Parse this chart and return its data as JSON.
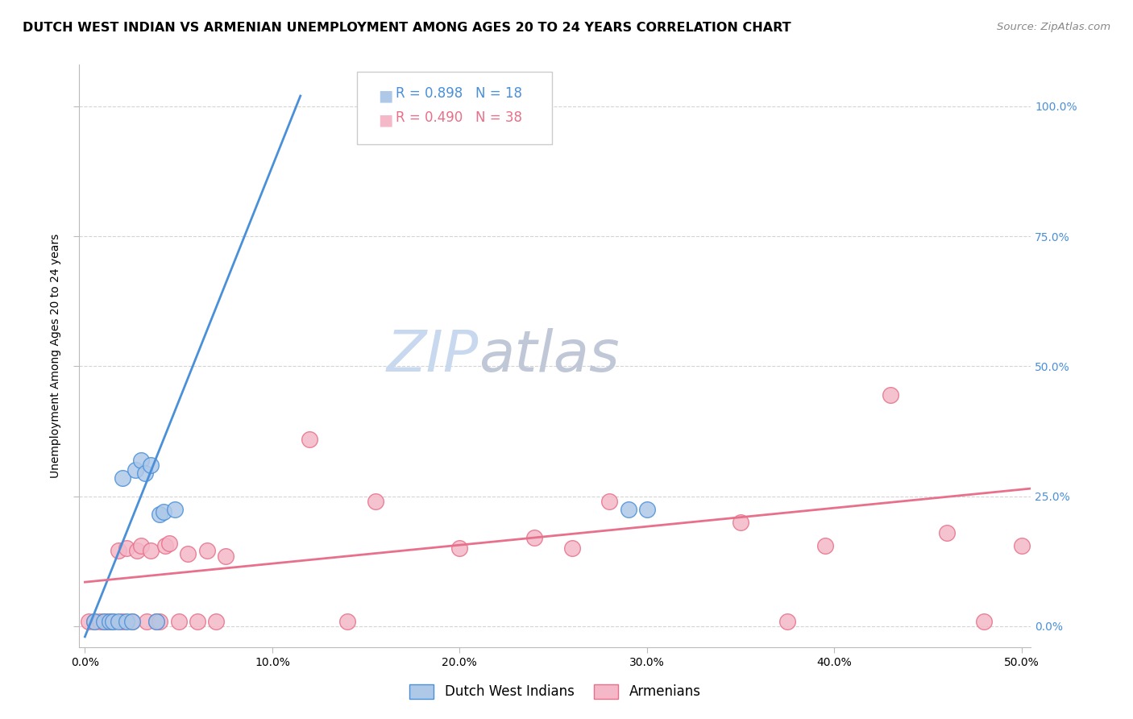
{
  "title": "DUTCH WEST INDIAN VS ARMENIAN UNEMPLOYMENT AMONG AGES 20 TO 24 YEARS CORRELATION CHART",
  "source": "Source: ZipAtlas.com",
  "ylabel": "Unemployment Among Ages 20 to 24 years",
  "xlabel_ticks": [
    "0.0%",
    "10.0%",
    "20.0%",
    "30.0%",
    "40.0%",
    "50.0%"
  ],
  "xlabel_vals": [
    0.0,
    0.1,
    0.2,
    0.3,
    0.4,
    0.5
  ],
  "ylabel_ticks": [
    "0.0%",
    "25.0%",
    "50.0%",
    "75.0%",
    "100.0%"
  ],
  "ylabel_vals": [
    0.0,
    0.25,
    0.5,
    0.75,
    1.0
  ],
  "xlim": [
    -0.003,
    0.505
  ],
  "ylim": [
    -0.04,
    1.08
  ],
  "blue_R": 0.898,
  "blue_N": 18,
  "pink_R": 0.49,
  "pink_N": 38,
  "blue_color": "#aec8e8",
  "pink_color": "#f4b8c8",
  "blue_line_color": "#4a90d9",
  "pink_line_color": "#e8708a",
  "watermark_zip": "ZIP",
  "watermark_atlas": "atlas",
  "legend_label_blue": "Dutch West Indians",
  "legend_label_pink": "Armenians",
  "blue_points_x": [
    0.005,
    0.01,
    0.013,
    0.015,
    0.018,
    0.02,
    0.022,
    0.025,
    0.027,
    0.03,
    0.032,
    0.035,
    0.038,
    0.04,
    0.042,
    0.048,
    0.29,
    0.3
  ],
  "blue_points_y": [
    0.01,
    0.01,
    0.01,
    0.01,
    0.01,
    0.285,
    0.01,
    0.01,
    0.3,
    0.32,
    0.295,
    0.31,
    0.01,
    0.215,
    0.22,
    0.225,
    0.225,
    0.225
  ],
  "pink_points_x": [
    0.002,
    0.005,
    0.008,
    0.01,
    0.012,
    0.015,
    0.018,
    0.02,
    0.022,
    0.025,
    0.028,
    0.03,
    0.033,
    0.035,
    0.038,
    0.04,
    0.043,
    0.045,
    0.05,
    0.055,
    0.06,
    0.065,
    0.07,
    0.075,
    0.12,
    0.14,
    0.155,
    0.2,
    0.24,
    0.26,
    0.28,
    0.35,
    0.375,
    0.395,
    0.43,
    0.46,
    0.48,
    0.5
  ],
  "pink_points_y": [
    0.01,
    0.01,
    0.01,
    0.01,
    0.01,
    0.01,
    0.145,
    0.01,
    0.15,
    0.01,
    0.145,
    0.155,
    0.01,
    0.145,
    0.01,
    0.01,
    0.155,
    0.16,
    0.01,
    0.14,
    0.01,
    0.145,
    0.01,
    0.135,
    0.36,
    0.01,
    0.24,
    0.15,
    0.17,
    0.15,
    0.24,
    0.2,
    0.01,
    0.155,
    0.445,
    0.18,
    0.01,
    0.155
  ],
  "blue_line_x": [
    0.0,
    0.115
  ],
  "blue_line_y": [
    -0.02,
    1.02
  ],
  "pink_line_x": [
    0.0,
    0.505
  ],
  "pink_line_y": [
    0.085,
    0.265
  ],
  "title_fontsize": 11.5,
  "source_fontsize": 9.5,
  "axis_label_fontsize": 10,
  "tick_fontsize": 10,
  "legend_fontsize": 12,
  "watermark_zip_fontsize": 52,
  "watermark_atlas_fontsize": 52,
  "watermark_zip_color": "#c8d8ee",
  "watermark_atlas_color": "#c0c8d8",
  "background_color": "#ffffff",
  "grid_color": "#d0d0d0"
}
